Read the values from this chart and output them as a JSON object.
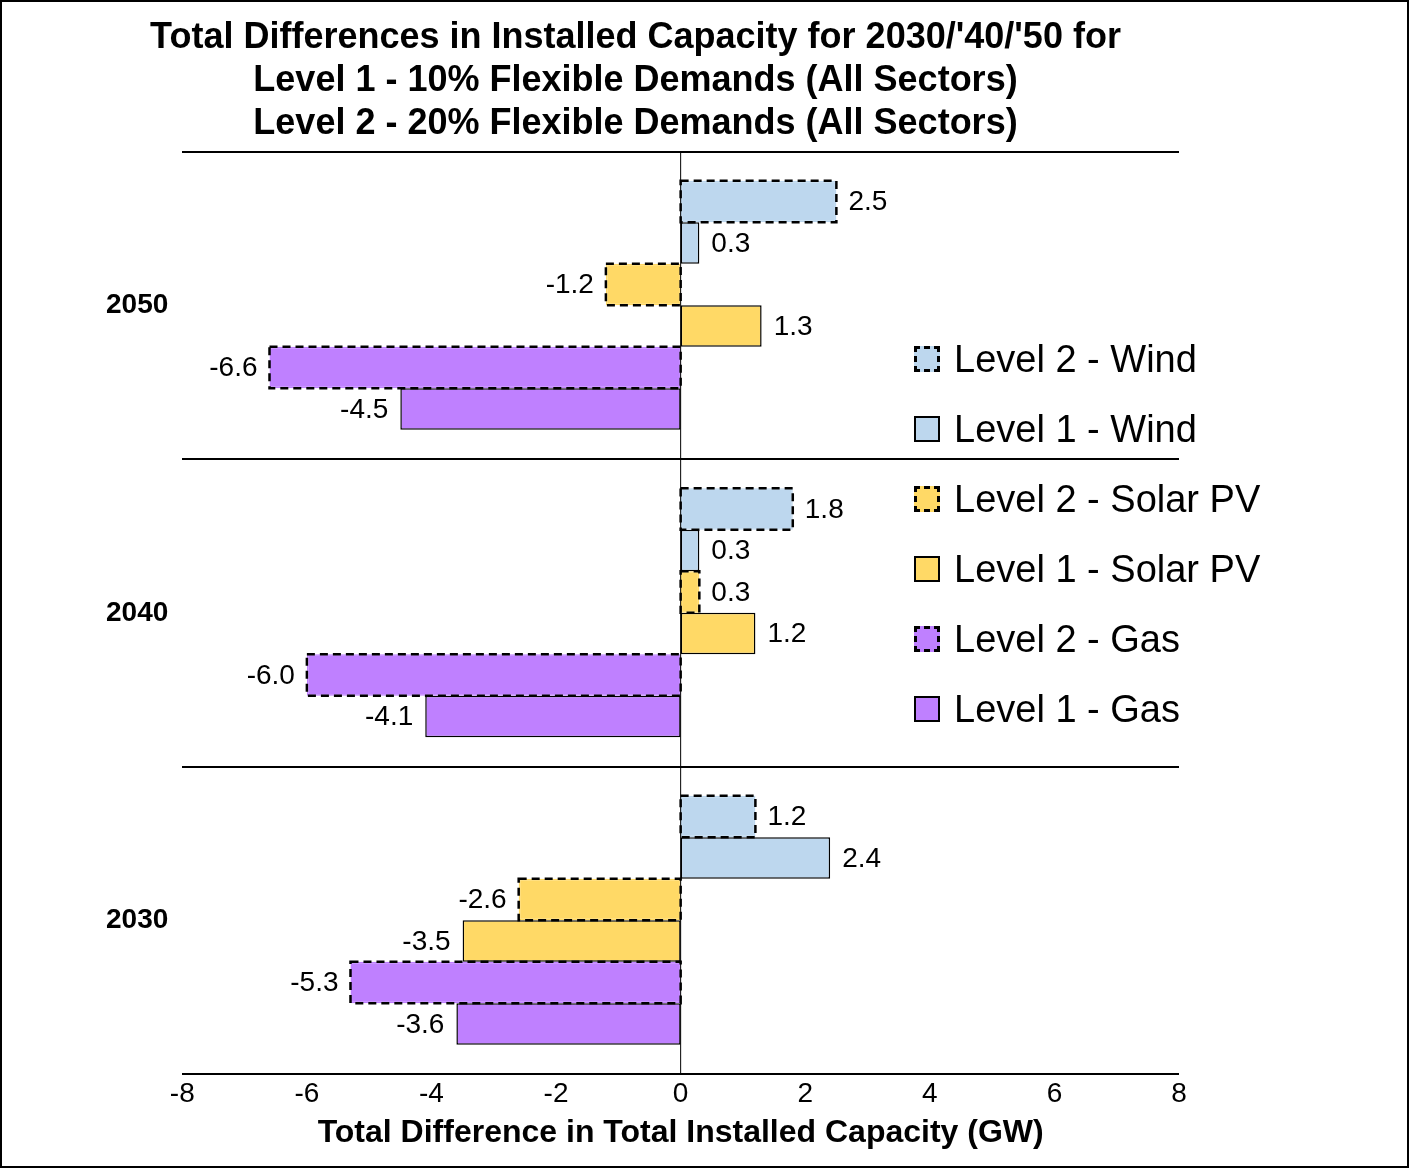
{
  "chart_data": {
    "type": "bar",
    "orientation": "horizontal",
    "title": "Total Differences in Installed Capacity for 2030/'40/'50 for\nLevel 1 - 10% Flexible Demands (All Sectors)\nLevel 2 - 20% Flexible Demands (All Sectors)",
    "xlabel": "Total Difference in Total Installed Capacity (GW)",
    "categories": [
      "2050",
      "2040",
      "2030"
    ],
    "series": [
      {
        "name": "Level 2 - Wind",
        "color": "#bdd7ee",
        "line_style": "dashed",
        "values": [
          2.5,
          1.8,
          1.2
        ],
        "value_labels": [
          "2.5",
          "1.8",
          "1.2"
        ]
      },
      {
        "name": "Level 1 - Wind",
        "color": "#bdd7ee",
        "line_style": "solid",
        "values": [
          0.3,
          0.3,
          2.4
        ],
        "value_labels": [
          "0.3",
          "0.3",
          "2.4"
        ]
      },
      {
        "name": "Level 2 - Solar PV",
        "color": "#ffd966",
        "line_style": "dashed",
        "values": [
          -1.2,
          0.3,
          -2.6
        ],
        "value_labels": [
          "-1.2",
          "0.3",
          "-2.6"
        ]
      },
      {
        "name": "Level 1 - Solar PV",
        "color": "#ffd966",
        "line_style": "solid",
        "values": [
          1.3,
          1.2,
          -3.5
        ],
        "value_labels": [
          "1.3",
          "1.2",
          "-3.5"
        ]
      },
      {
        "name": "Level 2 - Gas",
        "color": "#bf80ff",
        "line_style": "dashed",
        "values": [
          -6.6,
          -6.0,
          -5.3
        ],
        "value_labels": [
          "-6.6",
          "-6.0",
          "-5.3"
        ]
      },
      {
        "name": "Level 1 - Gas",
        "color": "#bf80ff",
        "line_style": "solid",
        "values": [
          -4.5,
          -4.1,
          -3.6
        ],
        "value_labels": [
          "-4.5",
          "-4.1",
          "-3.6"
        ]
      }
    ],
    "xlim": [
      -8,
      8
    ],
    "xticks": [
      -8,
      -6,
      -4,
      -2,
      0,
      2,
      4,
      6,
      8
    ],
    "grid": "y",
    "legend": "right"
  }
}
